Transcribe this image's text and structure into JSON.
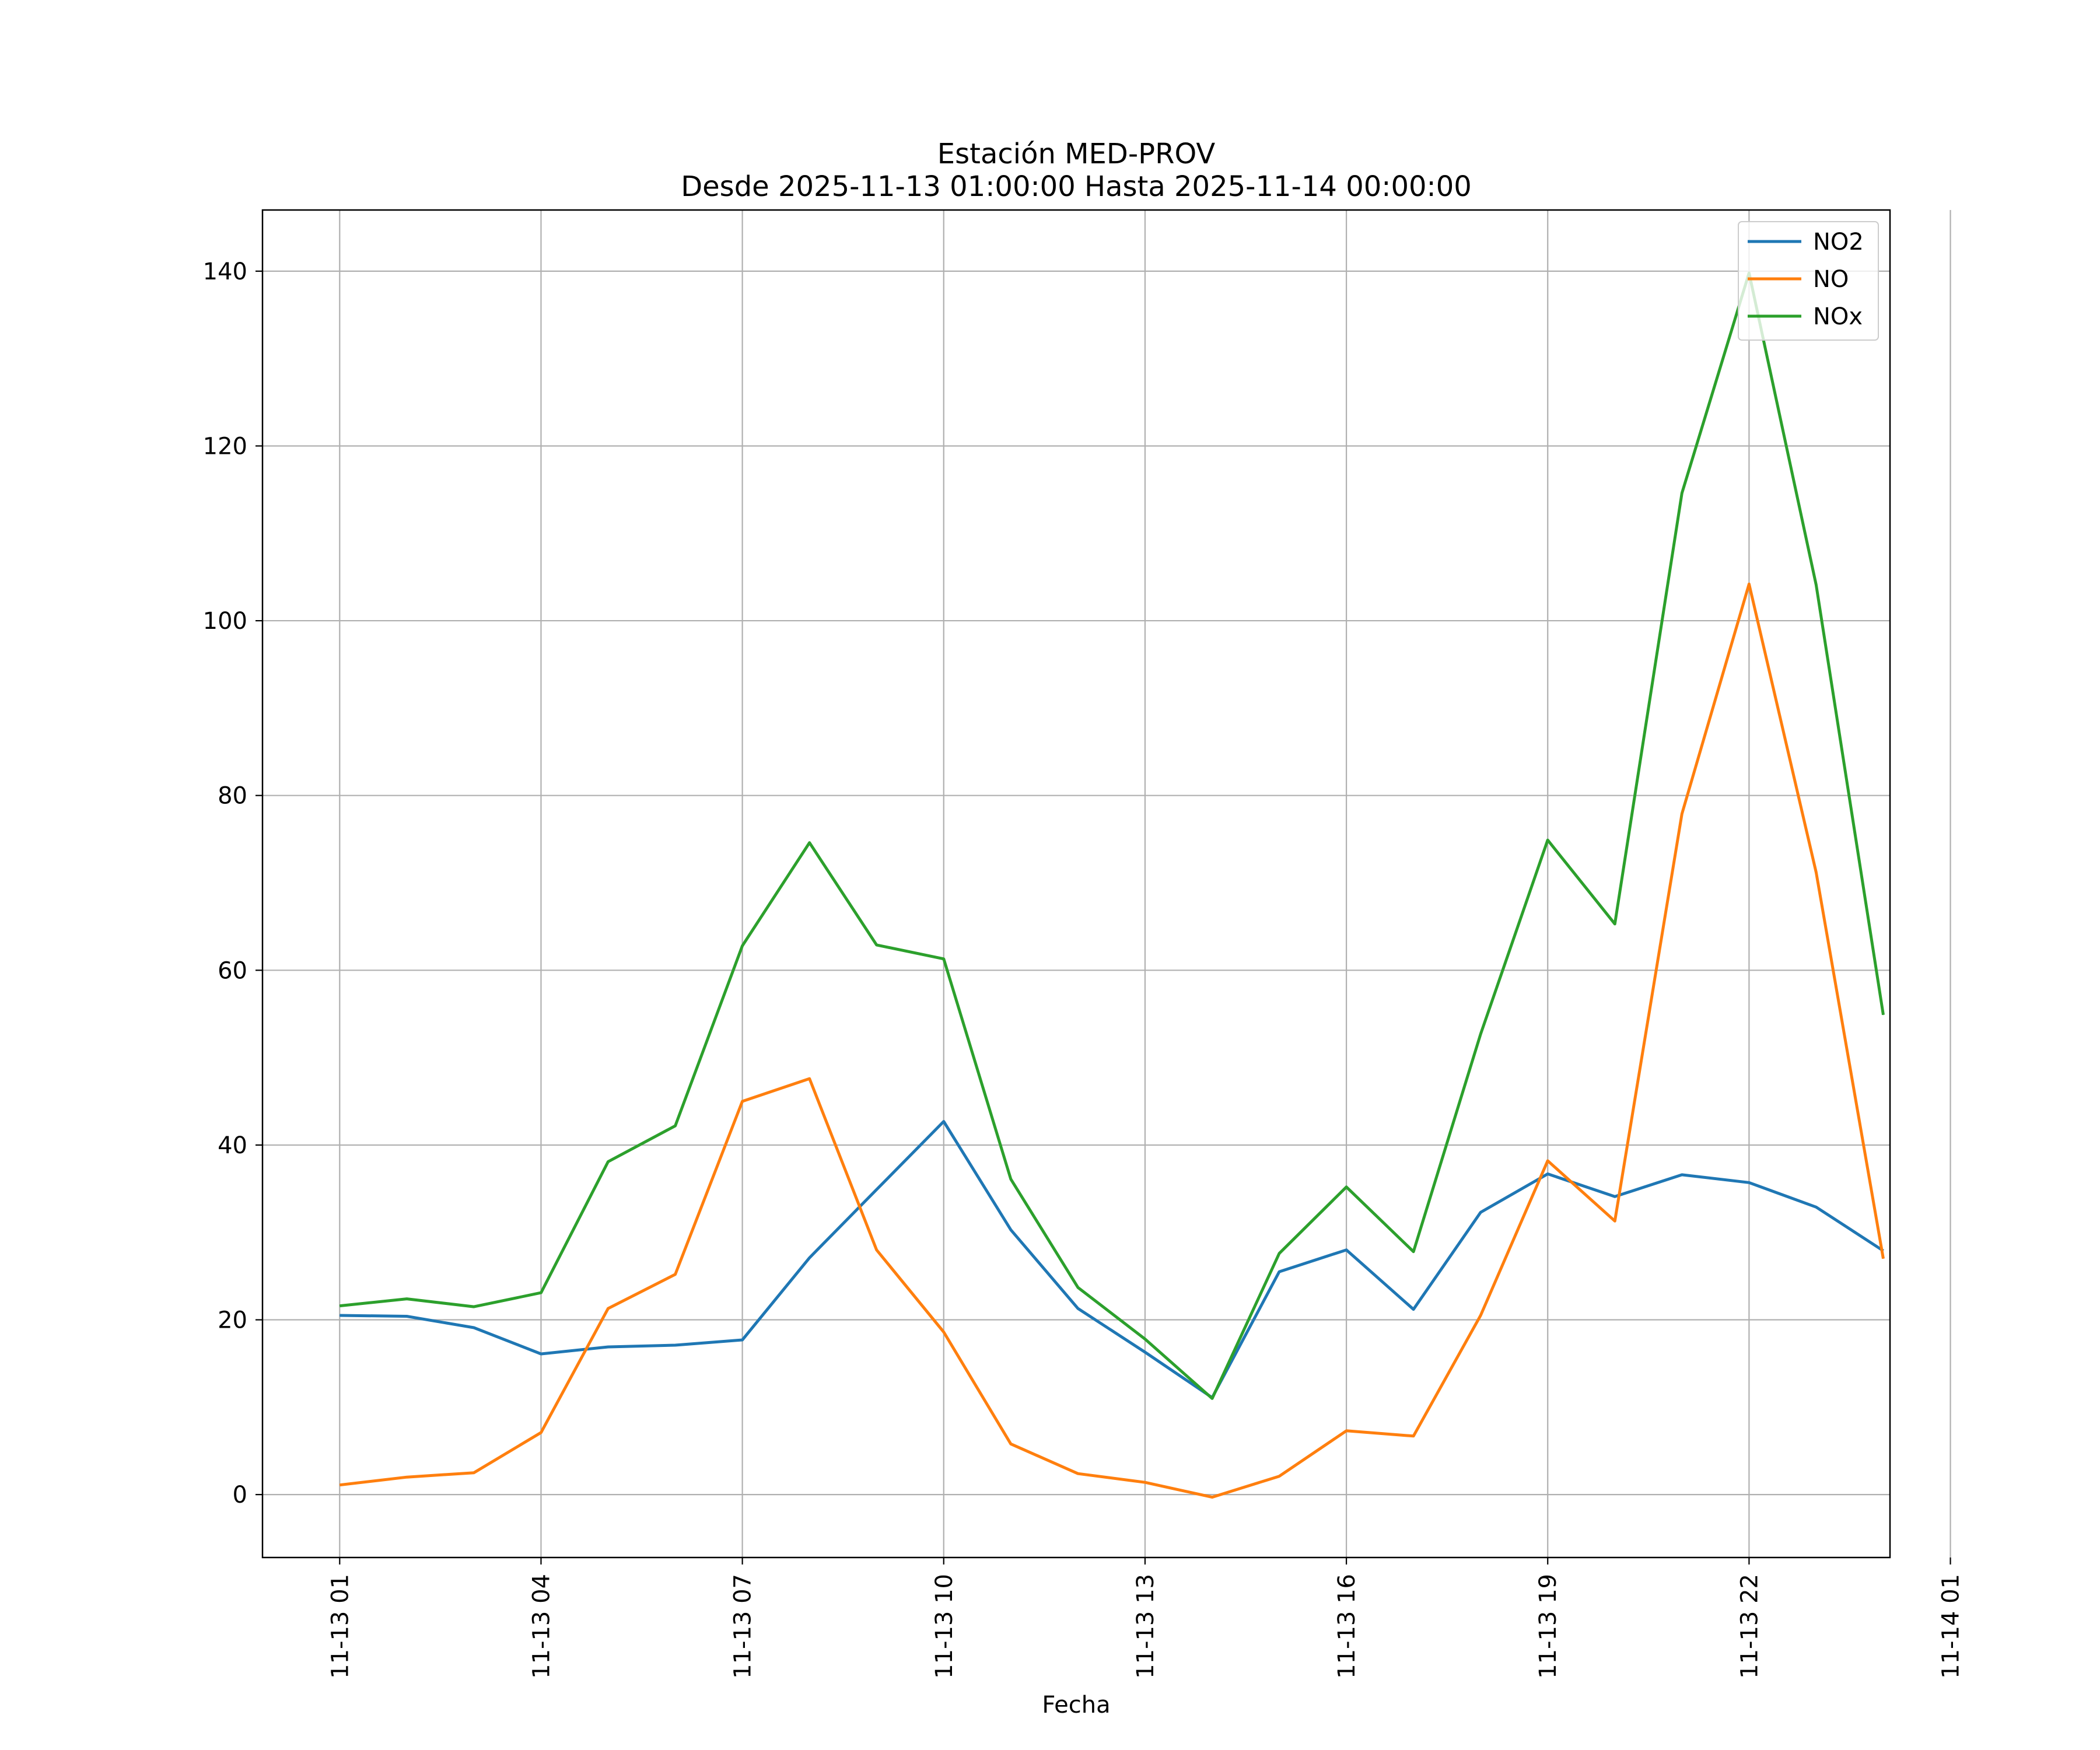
{
  "chart_data": {
    "type": "line",
    "title_line1": "Estación MED-PROV",
    "title_line2": "Desde 2025-11-13 01:00:00 Hasta 2025-11-14 00:00:00",
    "xlabel": "Fecha",
    "ylabel": "",
    "grid": true,
    "legend_position": "top-right",
    "x_hours": [
      1,
      2,
      3,
      4,
      5,
      6,
      7,
      8,
      9,
      10,
      11,
      12,
      13,
      14,
      15,
      16,
      17,
      18,
      19,
      20,
      21,
      22,
      23,
      24
    ],
    "x_range_hours": [
      -0.15,
      24.1
    ],
    "ylim": [
      -7.2,
      147
    ],
    "x_ticks": [
      {
        "hour": 1,
        "label": "11-13 01"
      },
      {
        "hour": 4,
        "label": "11-13 04"
      },
      {
        "hour": 7,
        "label": "11-13 07"
      },
      {
        "hour": 10,
        "label": "11-13 10"
      },
      {
        "hour": 13,
        "label": "11-13 13"
      },
      {
        "hour": 16,
        "label": "11-13 16"
      },
      {
        "hour": 19,
        "label": "11-13 19"
      },
      {
        "hour": 22,
        "label": "11-13 22"
      },
      {
        "hour": 25,
        "label": "11-14 01"
      }
    ],
    "y_ticks": [
      0,
      20,
      40,
      60,
      80,
      100,
      120,
      140
    ],
    "series": [
      {
        "name": "NO2",
        "color": "#1f77b4",
        "values": [
          20.5,
          20.4,
          19.1,
          16.1,
          16.9,
          17.1,
          17.7,
          27.1,
          34.9,
          42.7,
          30.3,
          21.3,
          16.3,
          11.1,
          25.5,
          28.0,
          21.2,
          32.3,
          36.7,
          34.1,
          36.6,
          35.7,
          32.9,
          27.9
        ]
      },
      {
        "name": "NO",
        "color": "#ff7f0e",
        "values": [
          1.1,
          2.0,
          2.5,
          7.1,
          21.3,
          25.2,
          45.0,
          47.6,
          28.0,
          18.6,
          5.8,
          2.4,
          1.4,
          -0.3,
          2.1,
          7.3,
          6.7,
          20.5,
          38.2,
          31.3,
          77.9,
          104.2,
          71.2,
          27.0
        ]
      },
      {
        "name": "NOx",
        "color": "#2ca02c",
        "values": [
          21.6,
          22.4,
          21.5,
          23.1,
          38.1,
          42.2,
          62.8,
          74.6,
          62.9,
          61.3,
          36.1,
          23.7,
          17.8,
          11.0,
          27.6,
          35.2,
          27.8,
          52.7,
          74.9,
          65.3,
          114.6,
          139.8,
          104.1,
          54.9
        ]
      }
    ]
  }
}
